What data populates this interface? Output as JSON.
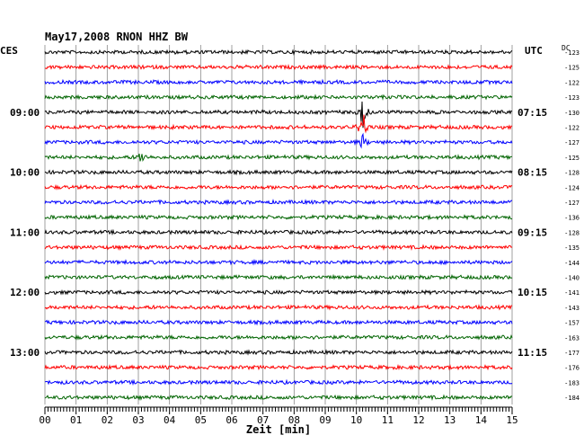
{
  "header": {
    "title": "May17,2008   RNON HHZ BW",
    "left_zone": "CES",
    "right_zone": "UTC",
    "offset_label": "DC"
  },
  "chart_data": {
    "type": "line",
    "xlabel": "Zeit [min]",
    "x_ticks": [
      "00",
      "01",
      "02",
      "03",
      "04",
      "05",
      "06",
      "07",
      "08",
      "09",
      "10",
      "11",
      "12",
      "13",
      "14",
      "15"
    ],
    "xlim": [
      0,
      15
    ],
    "trace_colors": [
      "#000000",
      "#ff0000",
      "#0000ff",
      "#006400"
    ],
    "grid": true,
    "rows": [
      {
        "offset": "-123",
        "left": "",
        "right": ""
      },
      {
        "offset": "-125",
        "left": "",
        "right": ""
      },
      {
        "offset": "-122",
        "left": "",
        "right": ""
      },
      {
        "offset": "-123",
        "left": "",
        "right": ""
      },
      {
        "offset": "-130",
        "left": "09:00",
        "right": "07:15"
      },
      {
        "offset": "-122",
        "left": "",
        "right": ""
      },
      {
        "offset": "-127",
        "left": "",
        "right": ""
      },
      {
        "offset": "-125",
        "left": "",
        "right": ""
      },
      {
        "offset": "-128",
        "left": "10:00",
        "right": "08:15"
      },
      {
        "offset": "-124",
        "left": "",
        "right": ""
      },
      {
        "offset": "-127",
        "left": "",
        "right": ""
      },
      {
        "offset": "-136",
        "left": "",
        "right": ""
      },
      {
        "offset": "-128",
        "left": "11:00",
        "right": "09:15"
      },
      {
        "offset": "-135",
        "left": "",
        "right": ""
      },
      {
        "offset": "-144",
        "left": "",
        "right": ""
      },
      {
        "offset": "-140",
        "left": "",
        "right": ""
      },
      {
        "offset": "-141",
        "left": "12:00",
        "right": "10:15"
      },
      {
        "offset": "-143",
        "left": "",
        "right": ""
      },
      {
        "offset": "-157",
        "left": "",
        "right": ""
      },
      {
        "offset": "-163",
        "left": "",
        "right": ""
      },
      {
        "offset": "-177",
        "left": "13:00",
        "right": "11:15"
      },
      {
        "offset": "-176",
        "left": "",
        "right": ""
      },
      {
        "offset": "-183",
        "left": "",
        "right": ""
      },
      {
        "offset": "-184",
        "left": "",
        "right": ""
      }
    ],
    "events": [
      {
        "row": 4,
        "minute": 10.2,
        "amplitude": "large"
      },
      {
        "row": 5,
        "minute": 10.2,
        "amplitude": "large"
      },
      {
        "row": 6,
        "minute": 10.2,
        "amplitude": "medium"
      },
      {
        "row": 7,
        "minute": 3.1,
        "amplitude": "medium"
      }
    ]
  }
}
